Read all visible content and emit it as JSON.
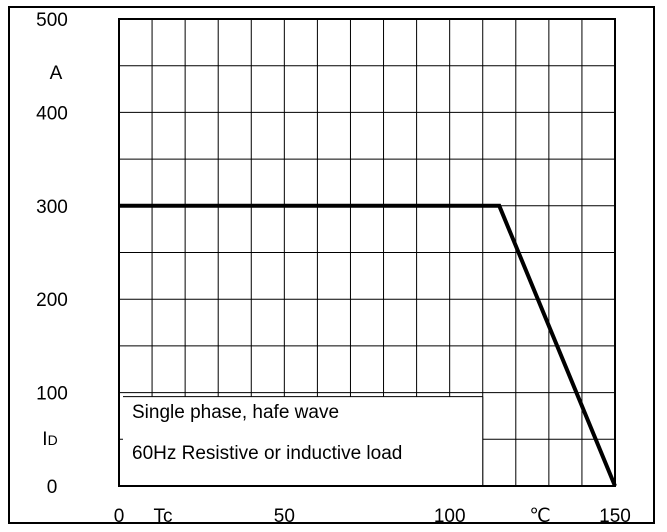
{
  "chart_data": {
    "type": "line",
    "title": "",
    "xlabel": "Tc",
    "ylabel": "ID",
    "x_unit": "℃",
    "y_unit": "A",
    "xlim": [
      0,
      150
    ],
    "ylim": [
      0,
      500
    ],
    "grid": true,
    "x_ticks": [
      "0",
      "50",
      "100",
      "150"
    ],
    "y_ticks": [
      "500",
      "400",
      "300",
      "200",
      "100",
      "0"
    ],
    "series": [
      {
        "x": [
          0,
          115,
          150
        ],
        "y": [
          300,
          300,
          0
        ]
      }
    ],
    "annotation_lines": [
      "Single phase, hafe wave",
      "60Hz Resistive or inductive load"
    ],
    "ylabel_parts": {
      "main": "I",
      "sub": "D"
    }
  }
}
